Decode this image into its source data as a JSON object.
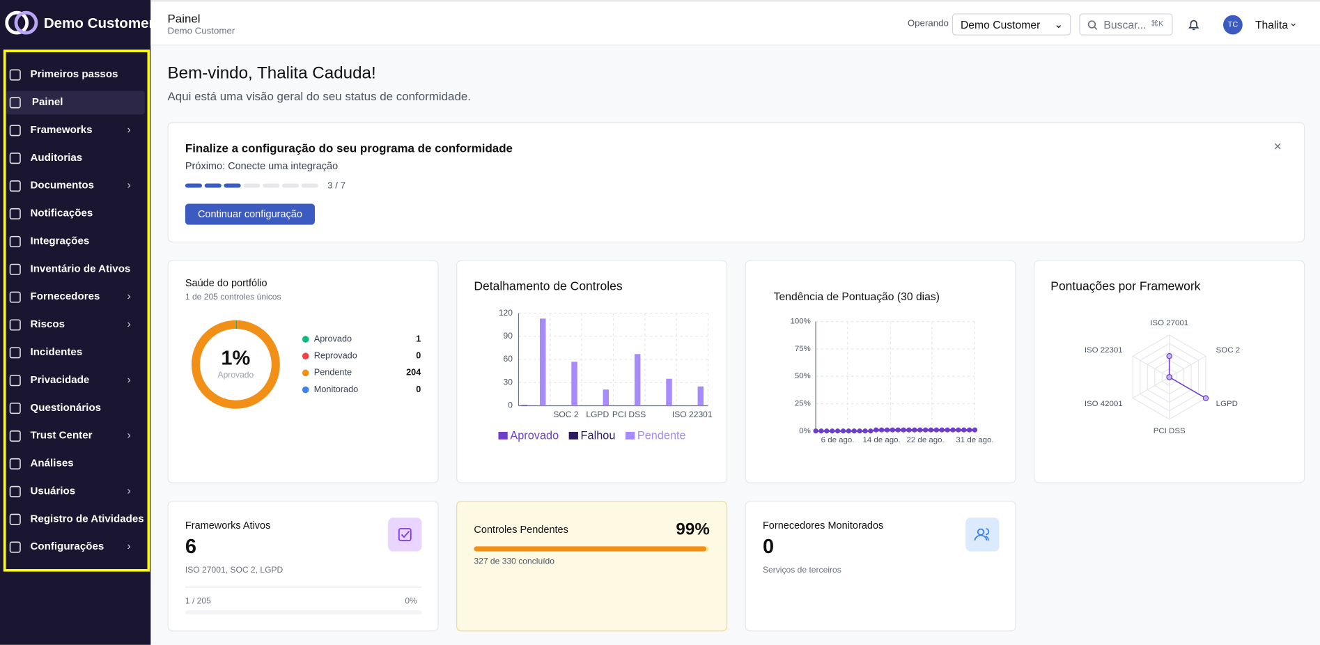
{
  "sidebar": {
    "brand": "Demo Customer",
    "items": [
      {
        "label": "Primeiros passos",
        "submenu": false
      },
      {
        "label": "Painel",
        "submenu": false,
        "active": true
      },
      {
        "label": "Frameworks",
        "submenu": true
      },
      {
        "label": "Auditorias",
        "submenu": false
      },
      {
        "label": "Documentos",
        "submenu": true
      },
      {
        "label": "Notificações",
        "submenu": false
      },
      {
        "label": "Integrações",
        "submenu": false
      },
      {
        "label": "Inventário de Ativos",
        "submenu": false
      },
      {
        "label": "Fornecedores",
        "submenu": true
      },
      {
        "label": "Riscos",
        "submenu": true
      },
      {
        "label": "Incidentes",
        "submenu": false
      },
      {
        "label": "Privacidade",
        "submenu": true
      },
      {
        "label": "Questionários",
        "submenu": false
      },
      {
        "label": "Trust Center",
        "submenu": true
      },
      {
        "label": "Análises",
        "submenu": false
      },
      {
        "label": "Usuários",
        "submenu": true
      },
      {
        "label": "Registro de Atividades",
        "submenu": false
      },
      {
        "label": "Configurações",
        "submenu": true
      }
    ]
  },
  "header": {
    "title": "Painel",
    "subtitle": "Demo Customer",
    "operating_label": "Operando",
    "operating_value": "Demo Customer",
    "search": "Buscar...",
    "shortcut": "⌘K",
    "avatar": "TC",
    "user": "Thalita"
  },
  "welcome": {
    "title": "Bem-vindo, Thalita Caduda!",
    "subtitle": "Aqui está uma visão geral do seu status de conformidade."
  },
  "setup": {
    "title": "Finalize a configuração do seu programa de conformidade",
    "next": "Próximo: Conecte uma integração",
    "steps_done": 3,
    "steps_total": 7,
    "steps_label": "3 / 7",
    "button": "Continuar configuração"
  },
  "chart_data": [
    {
      "type": "pie",
      "donut": true,
      "title": "Saúde do portfólio",
      "subtitle": "1 de 205 controles únicos",
      "center_value": "1%",
      "center_label": "Aprovado",
      "categories": [
        "Aprovado",
        "Reprovado",
        "Pendente",
        "Monitorado"
      ],
      "values": [
        1,
        0,
        204,
        0
      ],
      "colors": [
        "#10b981",
        "#ef4444",
        "#f18f16",
        "#3b82f6"
      ]
    },
    {
      "type": "bar",
      "title": "Detalhamento de Controles",
      "categories": [
        null,
        "SOC 2",
        "LGPD",
        "PCI DSS",
        null,
        "ISO 22301"
      ],
      "series": [
        {
          "name": "Aprovado",
          "color": "#6d3fc8",
          "values": [
            1,
            0,
            0,
            0,
            0,
            0
          ]
        },
        {
          "name": "Falhou",
          "color": "#2e1a5e",
          "values": [
            0,
            0,
            0,
            0,
            0,
            0
          ]
        },
        {
          "name": "Pendente",
          "color": "#a78bfa",
          "values": [
            113,
            57,
            21,
            67,
            35,
            25
          ]
        }
      ],
      "ylim": [
        0,
        120
      ],
      "yticks": [
        0,
        30,
        60,
        90,
        120
      ],
      "grid": true,
      "legend": "bottom"
    },
    {
      "type": "line",
      "title": "Tendência de Pontuação (30 dias)",
      "color": "#6d3fc8",
      "categories": [
        null,
        null,
        null,
        null,
        "6 de ago.",
        null,
        null,
        null,
        null,
        null,
        null,
        null,
        "14 de ago.",
        null,
        null,
        null,
        null,
        null,
        null,
        null,
        "22 de ago.",
        null,
        null,
        null,
        null,
        null,
        null,
        null,
        null,
        "31 de ago."
      ],
      "values": [
        0,
        0,
        0,
        0,
        0,
        0,
        0,
        0,
        0,
        0,
        0,
        1,
        1,
        1,
        1,
        1,
        1,
        1,
        1,
        1,
        1,
        1,
        1,
        1,
        1,
        1,
        1,
        1,
        1,
        1
      ],
      "ylim": [
        0,
        100
      ],
      "yticks": [
        {
          "value": 0,
          "label": "0%"
        },
        {
          "value": 25,
          "label": "25%"
        },
        {
          "value": 50,
          "label": "50%"
        },
        {
          "value": 75,
          "label": "75%"
        },
        {
          "value": 100,
          "label": "100%"
        }
      ],
      "grid": true
    },
    {
      "type": "radar",
      "title": "Pontuações por Framework",
      "color": "#6d3fc8",
      "categories": [
        "ISO 27001",
        "SOC 2",
        "LGPD",
        "PCI DSS",
        "ISO 42001",
        "ISO 22301"
      ],
      "values": [
        50,
        0,
        100,
        0,
        0,
        0
      ],
      "ylim": [
        0,
        100
      ]
    }
  ],
  "stats": [
    {
      "title": "Frameworks Ativos",
      "value": 6,
      "detail": "ISO 27001, SOC 2, LGPD",
      "progress_label": "1 / 205",
      "percent": 0,
      "percent_label": "0%"
    },
    {
      "title": "Controles Pendentes",
      "percent": 99,
      "percent_label": "99%",
      "detail": "327 de 330 concluído"
    },
    {
      "title": "Fornecedores Monitorados",
      "value": 0,
      "detail": "Serviços de terceiros"
    }
  ]
}
